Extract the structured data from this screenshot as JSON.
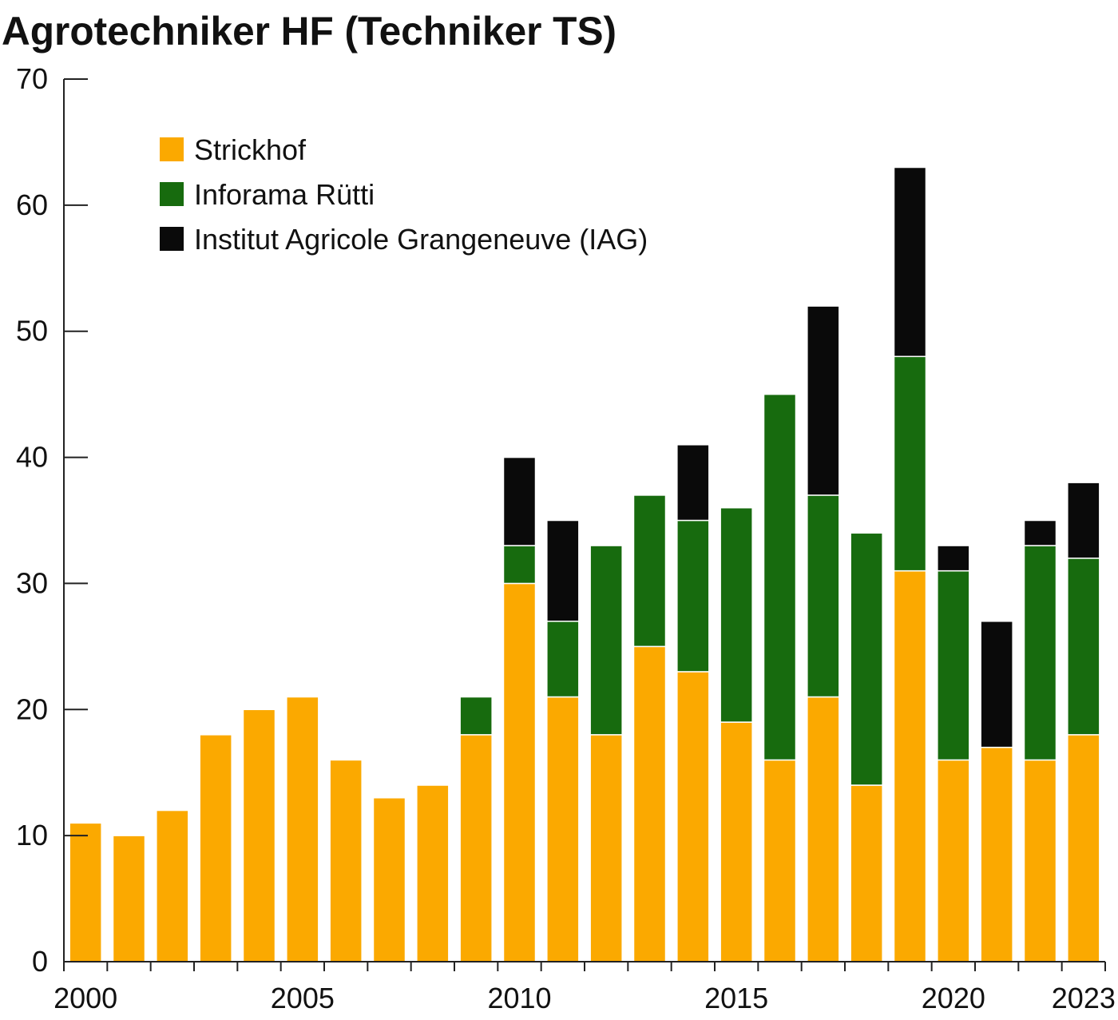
{
  "chart_data": {
    "type": "bar",
    "stacked": true,
    "title": "Agrotechniker HF (Techniker TS)",
    "xlabel": "",
    "ylabel": "",
    "ylim": [
      0,
      70
    ],
    "yticks": [
      "0",
      "10",
      "20",
      "30",
      "40",
      "50",
      "60",
      "70"
    ],
    "xtick_labels": [
      "2000",
      "2005",
      "2010",
      "2015",
      "2020",
      "2023"
    ],
    "grid": false,
    "legend_position": "top-left",
    "categories": [
      2000,
      2001,
      2002,
      2003,
      2004,
      2005,
      2006,
      2007,
      2008,
      2009,
      2010,
      2011,
      2012,
      2013,
      2014,
      2015,
      2016,
      2017,
      2018,
      2019,
      2020,
      2021,
      2022,
      2023
    ],
    "series": [
      {
        "name": "Strickhof",
        "color": "#FBA900",
        "values": [
          11,
          10,
          12,
          18,
          20,
          21,
          16,
          13,
          14,
          18,
          30,
          21,
          18,
          25,
          23,
          19,
          16,
          21,
          14,
          31,
          16,
          17,
          16,
          18
        ]
      },
      {
        "name": "Inforama Rütti",
        "color": "#176B0E",
        "values": [
          0,
          0,
          0,
          0,
          0,
          0,
          0,
          0,
          0,
          3,
          3,
          6,
          15,
          12,
          12,
          17,
          29,
          16,
          20,
          17,
          15,
          0,
          17,
          14
        ]
      },
      {
        "name": "Institut Agricole Grangeneuve (IAG)",
        "color": "#0A0A0A",
        "values": [
          0,
          0,
          0,
          0,
          0,
          0,
          0,
          0,
          0,
          0,
          7,
          8,
          0,
          0,
          6,
          0,
          0,
          15,
          0,
          15,
          2,
          10,
          2,
          6
        ]
      }
    ]
  }
}
